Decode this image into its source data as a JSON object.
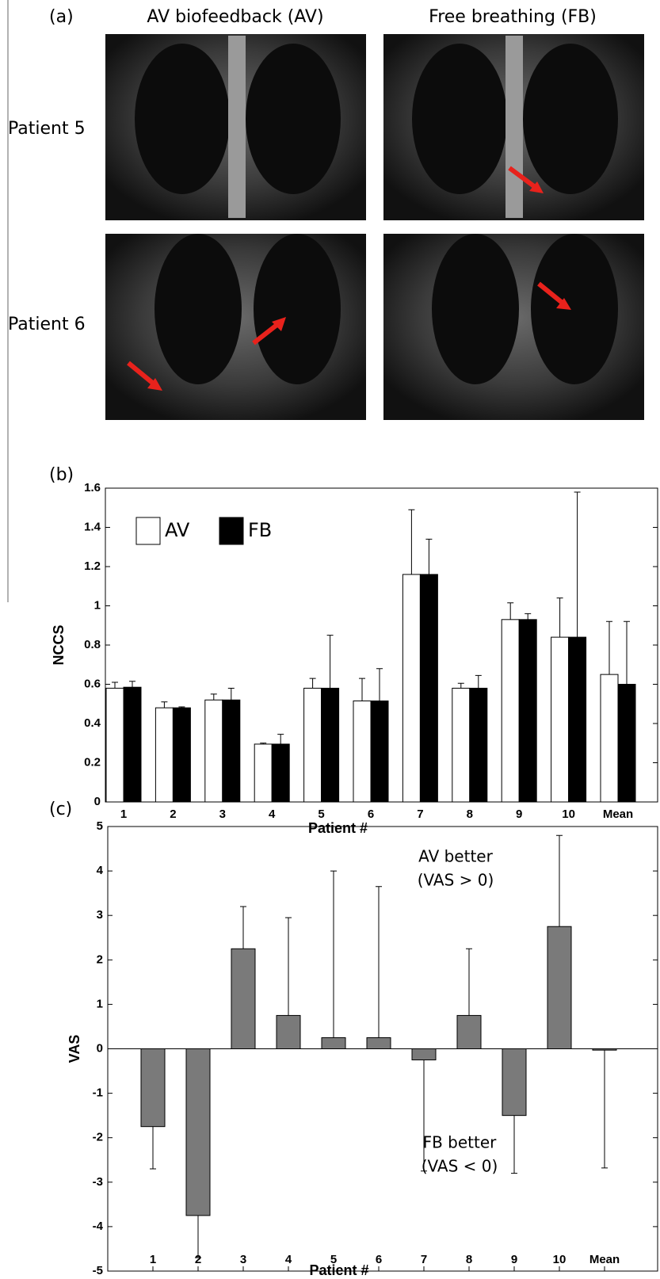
{
  "panel_a": {
    "panel_label": "(a)",
    "columns": [
      "AV biofeedback (AV)",
      "Free breathing (FB)"
    ],
    "rows": [
      "Patient 5",
      "Patient 6"
    ]
  },
  "chart_data": [
    {
      "type": "bar",
      "panel_label": "(b)",
      "y_label": "NCCS",
      "x_label": "Patient #",
      "categories": [
        "1",
        "2",
        "3",
        "4",
        "5",
        "6",
        "7",
        "8",
        "9",
        "10",
        "Mean"
      ],
      "series": [
        {
          "name": "AV",
          "color": "#ffffff",
          "values": [
            0.58,
            0.48,
            0.52,
            0.295,
            0.58,
            0.515,
            1.16,
            0.58,
            0.93,
            0.84,
            0.65
          ],
          "errors": [
            0.03,
            0.03,
            0.03,
            0.005,
            0.05,
            0.115,
            0.33,
            0.025,
            0.085,
            0.2,
            0.27
          ]
        },
        {
          "name": "FB",
          "color": "#000000",
          "values": [
            0.585,
            0.48,
            0.52,
            0.295,
            0.58,
            0.515,
            1.16,
            0.58,
            0.93,
            0.84,
            0.6
          ],
          "errors": [
            0.03,
            0.005,
            0.06,
            0.05,
            0.27,
            0.165,
            0.18,
            0.065,
            0.03,
            0.74,
            0.32
          ]
        }
      ],
      "ylim": [
        0,
        1.6
      ],
      "yticks": [
        0,
        0.2,
        0.4,
        0.6,
        0.8,
        1,
        1.2,
        1.4,
        1.6
      ],
      "legend": "upper left"
    },
    {
      "type": "bar",
      "panel_label": "(c)",
      "y_label": "VAS",
      "x_label": "Patient #",
      "categories": [
        "1",
        "2",
        "3",
        "4",
        "5",
        "6",
        "7",
        "8",
        "9",
        "10",
        "Mean"
      ],
      "series": [
        {
          "color": "#7a7a7a",
          "values": [
            -1.75,
            -3.75,
            2.25,
            0.75,
            0.25,
            0.25,
            -0.25,
            0.75,
            -1.5,
            2.75,
            -0.03
          ],
          "errors": [
            0.95,
            0.95,
            0.95,
            2.2,
            3.75,
            3.4,
            2.5,
            1.5,
            1.3,
            2.05,
            2.65
          ]
        }
      ],
      "ylim": [
        -5,
        5
      ],
      "yticks": [
        -5,
        -4,
        -3,
        -2,
        -1,
        0,
        1,
        2,
        3,
        4,
        5
      ],
      "annotations": [
        "AV better",
        "(VAS > 0)",
        "FB better",
        "(VAS < 0)"
      ]
    }
  ]
}
